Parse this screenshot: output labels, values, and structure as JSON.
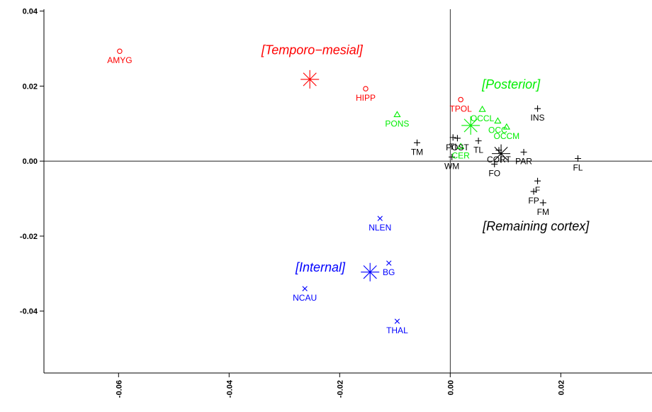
{
  "chart_data": {
    "type": "scatter",
    "title": "",
    "xlabel": "",
    "ylabel": "",
    "xlim": [
      -0.0735,
      0.0365
    ],
    "ylim": [
      -0.0565,
      0.0405
    ],
    "xticks": [
      -0.06,
      -0.04,
      -0.02,
      0.0,
      0.02
    ],
    "xtick_labels": [
      "-0.06",
      "-0.04",
      "-0.02",
      "0.00",
      "0.02"
    ],
    "yticks": [
      0.04,
      0.02,
      0.0,
      -0.02,
      -0.04
    ],
    "ytick_labels": [
      "0.04",
      "0.02",
      "0.00",
      "-0.02",
      "-0.04"
    ],
    "reference_lines": {
      "x": 0.0,
      "y": 0.0
    },
    "grid": false,
    "groups": [
      {
        "name": "[Temporo−mesial]",
        "color": "#ff0000",
        "marker": "circle",
        "centroid": {
          "x": -0.0254,
          "y": 0.0218
        },
        "label_at": {
          "x": -0.025,
          "y": 0.0285
        },
        "points": [
          {
            "label": "AMYG",
            "x": -0.0598,
            "y": 0.0293
          },
          {
            "label": "HIPP",
            "x": -0.0153,
            "y": 0.0193
          },
          {
            "label": "TPOL",
            "x": 0.0019,
            "y": 0.0164
          }
        ]
      },
      {
        "name": "[Posterior]",
        "color": "#00ee00",
        "marker": "triangle",
        "centroid": {
          "x": 0.0037,
          "y": 0.0095
        },
        "label_at": {
          "x": 0.011,
          "y": 0.0193
        },
        "points": [
          {
            "label": "PONS",
            "x": -0.0096,
            "y": 0.0124
          },
          {
            "label": "OCCL",
            "x": 0.0058,
            "y": 0.0138
          },
          {
            "label": "OCC",
            "x": 0.0086,
            "y": 0.0107
          },
          {
            "label": "OCCM",
            "x": 0.0102,
            "y": 0.0091
          },
          {
            "label": "CER",
            "x": 0.0019,
            "y": 0.0039
          }
        ]
      },
      {
        "name": "[Remaining cortex]",
        "color": "#000000",
        "marker": "plus",
        "centroid": {
          "x": 0.0092,
          "y": 0.002
        },
        "label_at": {
          "x": 0.0155,
          "y": -0.0185
        },
        "points": [
          {
            "label": "INS",
            "x": 0.0158,
            "y": 0.014
          },
          {
            "label": "TM",
            "x": -0.006,
            "y": 0.0049
          },
          {
            "label": "TL",
            "x": 0.0051,
            "y": 0.0054
          },
          {
            "label": "TI",
            "x": 0.0005,
            "y": 0.0063
          },
          {
            "label": "POST",
            "x": 0.0013,
            "y": 0.0061
          },
          {
            "label": "WM",
            "x": 0.0003,
            "y": 0.0011
          },
          {
            "label": "CORT",
            "x": 0.0088,
            "y": 0.0029
          },
          {
            "label": "PAR",
            "x": 0.0133,
            "y": 0.0024
          },
          {
            "label": "FO",
            "x": 0.008,
            "y": -0.0008
          },
          {
            "label": "FL",
            "x": 0.0231,
            "y": 0.0007
          },
          {
            "label": "F",
            "x": 0.0158,
            "y": -0.0053
          },
          {
            "label": "FP",
            "x": 0.0151,
            "y": -0.0081
          },
          {
            "label": "FM",
            "x": 0.0168,
            "y": -0.0111
          }
        ]
      },
      {
        "name": "[Internal]",
        "color": "#0000ff",
        "marker": "x",
        "centroid": {
          "x": -0.0145,
          "y": -0.0296
        },
        "label_at": {
          "x": -0.0235,
          "y": -0.0295
        },
        "points": [
          {
            "label": "NLEN",
            "x": -0.0127,
            "y": -0.0153
          },
          {
            "label": "BG",
            "x": -0.0111,
            "y": -0.0272
          },
          {
            "label": "NCAU",
            "x": -0.0263,
            "y": -0.034
          },
          {
            "label": "THAL",
            "x": -0.0096,
            "y": -0.0427
          }
        ]
      }
    ]
  }
}
